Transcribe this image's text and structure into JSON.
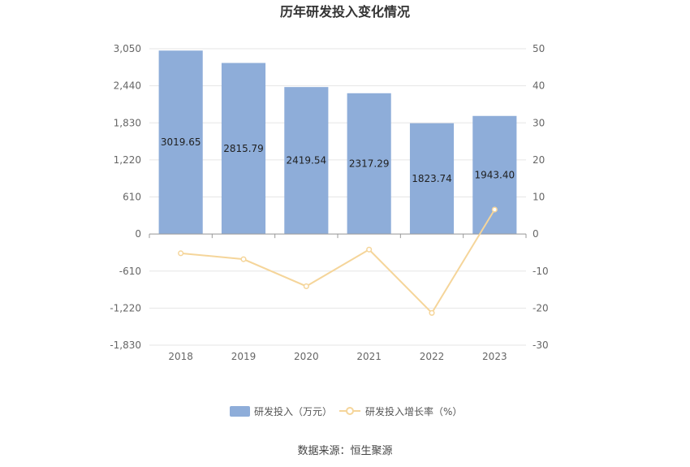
{
  "chart_data": {
    "type": "bar",
    "title": "历年研发投入变化情况",
    "categories": [
      "2018",
      "2019",
      "2020",
      "2021",
      "2022",
      "2023"
    ],
    "series": [
      {
        "name": "研发投入（万元）",
        "type": "bar",
        "axis": "left",
        "values": [
          3019.65,
          2815.79,
          2419.54,
          2317.29,
          1823.74,
          1943.4
        ],
        "labels": [
          "3019.65",
          "2815.79",
          "2419.54",
          "2317.29",
          "1823.74",
          "1943.40"
        ],
        "color": "#8eadd9"
      },
      {
        "name": "研发投入增长率（%）",
        "type": "line",
        "axis": "right",
        "values": [
          -5.2,
          -6.8,
          -14.1,
          -4.2,
          -21.3,
          6.6
        ],
        "color": "#f5d59a"
      }
    ],
    "y_left": {
      "min": -1830,
      "max": 3050,
      "ticks": [
        "3,050",
        "2,440",
        "1,830",
        "1,220",
        "610",
        "0",
        "-610",
        "-1,220",
        "-1,830"
      ],
      "tick_values": [
        3050,
        2440,
        1830,
        1220,
        610,
        0,
        -610,
        -1220,
        -1830
      ]
    },
    "y_right": {
      "min": -30,
      "max": 50,
      "ticks": [
        "50",
        "40",
        "30",
        "20",
        "10",
        "0",
        "-10",
        "-20",
        "-30"
      ],
      "tick_values": [
        50,
        40,
        30,
        20,
        10,
        0,
        -10,
        -20,
        -30
      ]
    },
    "legend": {
      "position": "bottom"
    },
    "grid": true,
    "xlabel": "",
    "ylabel": ""
  },
  "source_text": "数据来源：恒生聚源"
}
